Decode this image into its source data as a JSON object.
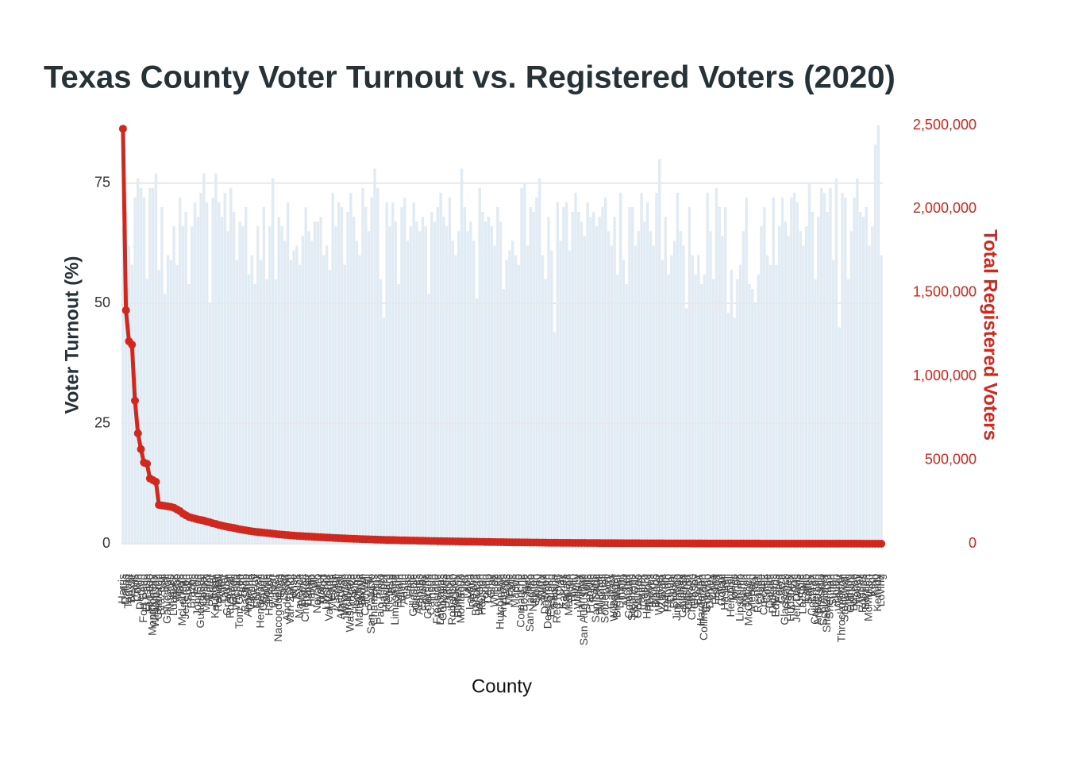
{
  "chart_data": {
    "type": "bar",
    "title": "Texas County Voter Turnout vs. Registered Voters (2020)",
    "xlabel": "County",
    "ylabel": "Voter Turnout (%)",
    "y2label": "Total Registered Voters",
    "ylim": [
      0,
      87
    ],
    "yticks": [
      0,
      25,
      50,
      75
    ],
    "y2lim": [
      0,
      2500000
    ],
    "y2ticks": [
      0,
      {
        "value": 500000,
        "label": "500,000"
      },
      {
        "value": 1000000,
        "label": "1,000,000"
      },
      {
        "value": 1500000,
        "label": "1,500,000"
      },
      {
        "value": 2000000,
        "label": "2,000,000"
      },
      {
        "value": 2500000,
        "label": "2,500,000"
      }
    ],
    "grid": true,
    "categories": [
      "Harris",
      "Dallas",
      "Tarrant",
      "Bexar",
      "Travis",
      "Collin",
      "Denton",
      "Fort Bend",
      "El Paso",
      "Hidalgo",
      "Montgomery",
      "Williamson",
      "Cameron",
      "Brazoria",
      "Bell",
      "Galveston",
      "Nueces",
      "Lubbock",
      "Webb",
      "Hays",
      "McLennan",
      "Jefferson",
      "Smith",
      "Brazos",
      "Ellis",
      "Johnson",
      "Guadalupe",
      "Comal",
      "Midland",
      "Ector",
      "Parker",
      "Kaufman",
      "Randall",
      "Potter",
      "Taylor",
      "Grayson",
      "Rockwall",
      "Gregg",
      "Wichita",
      "Tom Green",
      "Hunt",
      "Bastrop",
      "Angelina",
      "Victoria",
      "Liberty",
      "Coryell",
      "Henderson",
      "Orange",
      "Bowie",
      "Harrison",
      "Kerr",
      "Walker",
      "Nacogdoches",
      "Hood",
      "Starr",
      "Anderson",
      "Van Zandt",
      "Wise",
      "Rusk",
      "Maverick",
      "Burnet",
      "Cherokee",
      "Lamar",
      "Hardin",
      "Polk",
      "Navarro",
      "Waller",
      "Wood",
      "Upshur",
      "Val Verde",
      "Medina",
      "Erath",
      "Kendall",
      "Atascosa",
      "Wharton",
      "Jim Wells",
      "Washington",
      "Cooke",
      "Hopkins",
      "Matagorda",
      "Brown",
      "Caldwell",
      "Hill",
      "San Patricio",
      "Chambers",
      "Titus",
      "Palo Pinto",
      "Jasper",
      "Howard",
      "Kleberg",
      "Bee",
      "Limestone",
      "Milam",
      "Fannin",
      "Austin",
      "Cass",
      "Hale",
      "Gillespie",
      "Grimes",
      "Aransas",
      "Shelby",
      "Fayette",
      "Colorado",
      "Calhoun",
      "Llano",
      "Freestone",
      "Lampasas",
      "Gonzales",
      "Uvalde",
      "Panola",
      "Robertson",
      "Hockley",
      "Burleson",
      "Montague",
      "Tyler",
      "Leon",
      "Lavaca",
      "DeWitt",
      "Bandera",
      "Jackson",
      "Houston",
      "Young",
      "Camp",
      "Gray",
      "Wilson",
      "Lee",
      "Hutchinson",
      "Andrews",
      "Pecos",
      "Moore",
      "Falls",
      "Marion",
      "Frio",
      "Comanche",
      "Bosque",
      "Jack",
      "San Jacinto",
      "Newton",
      "Nolan",
      "Scurry",
      "Ward",
      "Dawson",
      "Deaf Smith",
      "Eastland",
      "Sabine",
      "Red River",
      "Clay",
      "Karnes",
      "Zapata",
      "Madison",
      "Lynn",
      "Trinity",
      "Willacy",
      "Hamilton",
      "San Augustine",
      "Mills",
      "Franklin",
      "Rains",
      "San Saba",
      "Mitchell",
      "Runnels",
      "Somervell",
      "Terry",
      "Gaines",
      "Wilbarger",
      "Brewster",
      "Dimmit",
      "Delta",
      "Archer",
      "Coleman",
      "Stephens",
      "Live Oak",
      "Ochiltree",
      "Parmer",
      "Castro",
      "Hansford",
      "Reeves",
      "Morris",
      "Blanco",
      "Wheeler",
      "Zavala",
      "Yoakum",
      "Refugio",
      "Duval",
      "Brooks",
      "Jim Hogg",
      "Kinney",
      "Callahan",
      "Swisher",
      "Carson",
      "Childress",
      "Crosby",
      "Baylor",
      "Hardeman",
      "Collingsworth",
      "Concho",
      "Donley",
      "Coke",
      "Fisher",
      "Floyd",
      "Goliad",
      "Haskell",
      "Hall",
      "Hemphill",
      "Jones",
      "Knox",
      "Lipscomb",
      "Martin",
      "Mason",
      "McCulloch",
      "Menard",
      "Real",
      "Reagan",
      "Crane",
      "Crockett",
      "Cottle",
      "Dallam",
      "Dickens",
      "Edwards",
      "Foard",
      "Garza",
      "Glasscock",
      "Hartley",
      "Hudspeth",
      "Irion",
      "Jeff Davis",
      "Kimble",
      "La Salle",
      "Lamb",
      "Bailey",
      "Cochran",
      "Culberson",
      "Armstrong",
      "Presidio",
      "Schleicher",
      "Shackelford",
      "Sherman",
      "Sutton",
      "Upton",
      "Winkler",
      "Throckmorton",
      "Stonewall",
      "Sterling",
      "Oldham",
      "Briscoe",
      "Motley",
      "Terrell",
      "Roberts",
      "Borden",
      "McMullen",
      "Kent",
      "King",
      "Kenedy",
      "Loving"
    ],
    "series": [
      {
        "type": "bar",
        "color": "#e1ebf4",
        "values": [
          66,
          69,
          62,
          58,
          72,
          76,
          74,
          72,
          55,
          74,
          74,
          77,
          57,
          70,
          52,
          60,
          59,
          66,
          58,
          72,
          66,
          69,
          54,
          66,
          71,
          68,
          73,
          77,
          71,
          50,
          72,
          77,
          71,
          68,
          73,
          65,
          74,
          69,
          59,
          67,
          66,
          70,
          56,
          60,
          54,
          66,
          59,
          70,
          55,
          66,
          76,
          55,
          68,
          66,
          63,
          71,
          59,
          61,
          62,
          58,
          64,
          70,
          65,
          63,
          67,
          67,
          68,
          60,
          62,
          57,
          73,
          66,
          71,
          70,
          58,
          69,
          73,
          68,
          63,
          60,
          74,
          70,
          65,
          72,
          78,
          74,
          55,
          47,
          71,
          66,
          71,
          67,
          54,
          70,
          72,
          63,
          66,
          71,
          67,
          65,
          68,
          66,
          52,
          69,
          67,
          70,
          73,
          68,
          66,
          72,
          63,
          60,
          65,
          78,
          70,
          65,
          67,
          63,
          51,
          74,
          69,
          67,
          68,
          66,
          62,
          70,
          67,
          53,
          59,
          61,
          63,
          60,
          58,
          74,
          75,
          62,
          70,
          69,
          72,
          76,
          60,
          55,
          68,
          61,
          44,
          71,
          63,
          70,
          71,
          61,
          69,
          73,
          69,
          67,
          64,
          71,
          68,
          69,
          66,
          68,
          70,
          72,
          65,
          62,
          68,
          56,
          73,
          59,
          54,
          70,
          70,
          62,
          65,
          73,
          67,
          71,
          65,
          62,
          73,
          80,
          59,
          68,
          56,
          60,
          63,
          73,
          65,
          62,
          49,
          70,
          60,
          56,
          60,
          54,
          56,
          73,
          65,
          55,
          74,
          70,
          64,
          70,
          48,
          57,
          47,
          55,
          58,
          65,
          72,
          54,
          53,
          50,
          56,
          66,
          70,
          60,
          58,
          72,
          58,
          66,
          72,
          67,
          64,
          72,
          73,
          71,
          65,
          62,
          66,
          75,
          69,
          55,
          68,
          74,
          73,
          69,
          74,
          59,
          76,
          45,
          73,
          72,
          55,
          65,
          72,
          76,
          69,
          68,
          70,
          62,
          66,
          83,
          87,
          60
        ]
      },
      {
        "type": "line",
        "axis": "y2",
        "color": "#d0281e",
        "values": [
          2480000,
          1395000,
          1210000,
          1190000,
          855000,
          660000,
          565000,
          485000,
          478000,
          390000,
          380000,
          370000,
          232000,
          229000,
          226000,
          223000,
          220000,
          215000,
          205000,
          195000,
          180000,
          170000,
          160000,
          155000,
          150000,
          145000,
          142000,
          138000,
          132000,
          128000,
          122000,
          118000,
          112000,
          108000,
          104000,
          100000,
          97000,
          94000,
          90000,
          86000,
          83000,
          80000,
          77000,
          74000,
          72000,
          70000,
          68000,
          66000,
          64000,
          62000,
          60000,
          58000,
          56000,
          54500,
          53000,
          51500,
          50000,
          48500,
          47000,
          46000,
          45000,
          44000,
          43000,
          42000,
          41000,
          40000,
          39000,
          38000,
          37000,
          36000,
          35000,
          34200,
          33400,
          32600,
          31800,
          31000,
          30200,
          29500,
          28800,
          28100,
          27400,
          26800,
          26200,
          25600,
          25000,
          24400,
          23800,
          23300,
          22800,
          22300,
          21800,
          21300,
          20800,
          20300,
          19900,
          19500,
          19100,
          18700,
          18300,
          17900,
          17500,
          17100,
          16700,
          16300,
          16000,
          15700,
          15400,
          15100,
          14800,
          14500,
          14200,
          13900,
          13600,
          13300,
          13000,
          12700,
          12400,
          12100,
          11800,
          11500,
          11200,
          10900,
          10600,
          10300,
          10000,
          9750,
          9500,
          9250,
          9000,
          8750,
          8500,
          8300,
          8100,
          7900,
          7700,
          7500,
          7300,
          7100,
          6900,
          6700,
          6500,
          6350,
          6200,
          6050,
          5900,
          5750,
          5600,
          5450,
          5300,
          5150,
          5000,
          4880,
          4760,
          4640,
          4520,
          4400,
          4280,
          4160,
          4040,
          3920,
          3800,
          3700,
          3600,
          3500,
          3400,
          3300,
          3200,
          3100,
          3000,
          2920,
          2840,
          2760,
          2680,
          2600,
          2530,
          2460,
          2390,
          2320,
          2250,
          2180,
          2120,
          2060,
          2000,
          1950,
          1900,
          1850,
          1800,
          1750,
          1700,
          1660,
          1620,
          1580,
          1540,
          1500,
          1460,
          1420,
          1380,
          1340,
          1300,
          1270,
          1240,
          1210,
          1180,
          1150,
          1120,
          1090,
          1060,
          1030,
          1000,
          975,
          950,
          925,
          900,
          875,
          850,
          825,
          800,
          780,
          760,
          740,
          720,
          700,
          680,
          660,
          640,
          620,
          600,
          585,
          570,
          555,
          540,
          525,
          510,
          495,
          480,
          465,
          450,
          435,
          420,
          405,
          390,
          375,
          360,
          345,
          330,
          315,
          300,
          285,
          270,
          255,
          240,
          210,
          170,
          110
        ]
      }
    ]
  }
}
